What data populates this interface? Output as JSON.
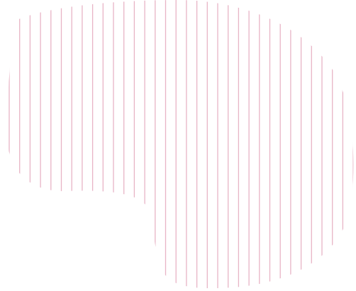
{
  "graphic": {
    "shape_icon": "striped-blob-shape",
    "stripe_color": "#e8b4c6",
    "background_color": "#ffffff"
  }
}
